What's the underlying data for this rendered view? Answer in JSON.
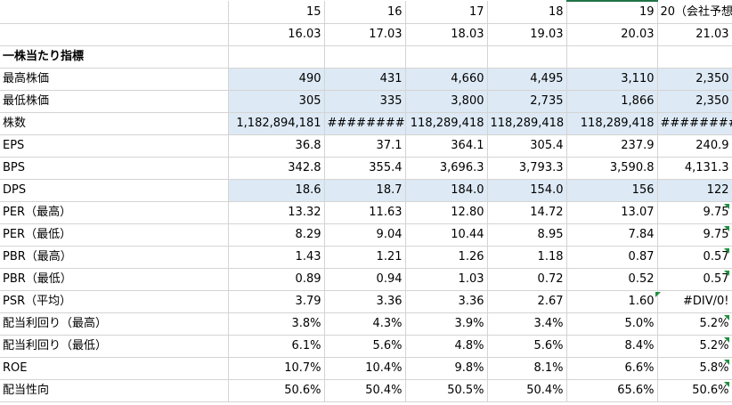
{
  "header_years": [
    "15",
    "16",
    "17",
    "18",
    "19",
    "20（会社予想"
  ],
  "header_periods": [
    "16.03",
    "17.03",
    "18.03",
    "19.03",
    "20.03",
    "21.03"
  ],
  "section_title": "一株当たり指標",
  "rows": [
    {
      "label": "最高株価",
      "values": [
        "490",
        "431",
        "4,660",
        "4,495",
        "3,110",
        "2,350"
      ]
    },
    {
      "label": "最低株価",
      "values": [
        "305",
        "335",
        "3,800",
        "2,735",
        "1,866",
        "2,350"
      ]
    },
    {
      "label": "株数",
      "values": [
        "1,182,894,181",
        "#########",
        "118,289,418",
        "118,289,418",
        "118,289,418",
        "########"
      ]
    },
    {
      "label": "EPS",
      "values": [
        "36.8",
        "37.1",
        "364.1",
        "305.4",
        "237.9",
        "240.9"
      ]
    },
    {
      "label": "BPS",
      "values": [
        "342.8",
        "355.4",
        "3,696.3",
        "3,793.3",
        "3,590.8",
        "4,131.3"
      ]
    },
    {
      "label": "DPS",
      "values": [
        "18.6",
        "18.7",
        "184.0",
        "154.0",
        "156",
        "122"
      ]
    },
    {
      "label": "PER（最高）",
      "values": [
        "13.32",
        "11.63",
        "12.80",
        "14.72",
        "13.07",
        "9.75"
      ]
    },
    {
      "label": "PER（最低）",
      "values": [
        "8.29",
        "9.04",
        "10.44",
        "8.95",
        "7.84",
        "9.75"
      ]
    },
    {
      "label": "PBR（最高）",
      "values": [
        "1.43",
        "1.21",
        "1.26",
        "1.18",
        "0.87",
        "0.57"
      ]
    },
    {
      "label": "PBR（最低）",
      "values": [
        "0.89",
        "0.94",
        "1.03",
        "0.72",
        "0.52",
        "0.57"
      ]
    },
    {
      "label": "PSR（平均）",
      "values": [
        "3.79",
        "3.36",
        "3.36",
        "2.67",
        "1.60",
        "#DIV/0!"
      ]
    },
    {
      "label": "配当利回り（最高）",
      "values": [
        "3.8%",
        "4.3%",
        "3.9%",
        "3.4%",
        "5.0%",
        "5.2%"
      ]
    },
    {
      "label": "配当利回り（最低）",
      "values": [
        "6.1%",
        "5.6%",
        "4.8%",
        "5.6%",
        "8.4%",
        "5.2%"
      ]
    },
    {
      "label": "ROE",
      "values": [
        "10.7%",
        "10.4%",
        "9.8%",
        "8.1%",
        "6.6%",
        "5.8%"
      ]
    },
    {
      "label": "配当性向",
      "values": [
        "50.6%",
        "50.4%",
        "50.5%",
        "50.4%",
        "65.6%",
        "50.6%"
      ]
    }
  ],
  "colors": {
    "highlight": "#dde9f4",
    "gridline": "#d4d4d4",
    "selection": "#217346",
    "comment_marker": "#1e8f3e"
  }
}
